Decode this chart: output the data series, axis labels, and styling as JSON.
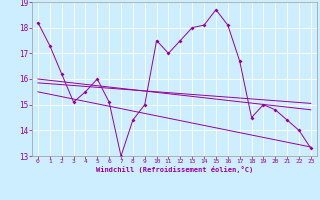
{
  "xlabel": "Windchill (Refroidissement éolien,°C)",
  "background_color": "#cceeff",
  "line_color": "#990099",
  "xlim": [
    -0.5,
    23.5
  ],
  "ylim": [
    13,
    19
  ],
  "yticks": [
    13,
    14,
    15,
    16,
    17,
    18,
    19
  ],
  "xticks": [
    0,
    1,
    2,
    3,
    4,
    5,
    6,
    7,
    8,
    9,
    10,
    11,
    12,
    13,
    14,
    15,
    16,
    17,
    18,
    19,
    20,
    21,
    22,
    23
  ],
  "series": {
    "line1": {
      "x": [
        0,
        1,
        2,
        3,
        4,
        5,
        6,
        7,
        8,
        9,
        10,
        11,
        12,
        13,
        14,
        15,
        16,
        17,
        18,
        19,
        20,
        21,
        22,
        23
      ],
      "y": [
        18.2,
        17.3,
        16.2,
        15.1,
        15.5,
        16.0,
        15.1,
        13.0,
        14.4,
        15.0,
        17.5,
        17.0,
        17.5,
        18.0,
        18.1,
        18.7,
        18.1,
        16.7,
        14.5,
        15.0,
        14.8,
        14.4,
        14.0,
        13.3
      ]
    },
    "line2": {
      "x": [
        0,
        23
      ],
      "y": [
        16.0,
        14.8
      ]
    },
    "line3": {
      "x": [
        0,
        23
      ],
      "y": [
        15.85,
        15.05
      ]
    },
    "line4": {
      "x": [
        0,
        23
      ],
      "y": [
        15.5,
        13.35
      ]
    }
  }
}
